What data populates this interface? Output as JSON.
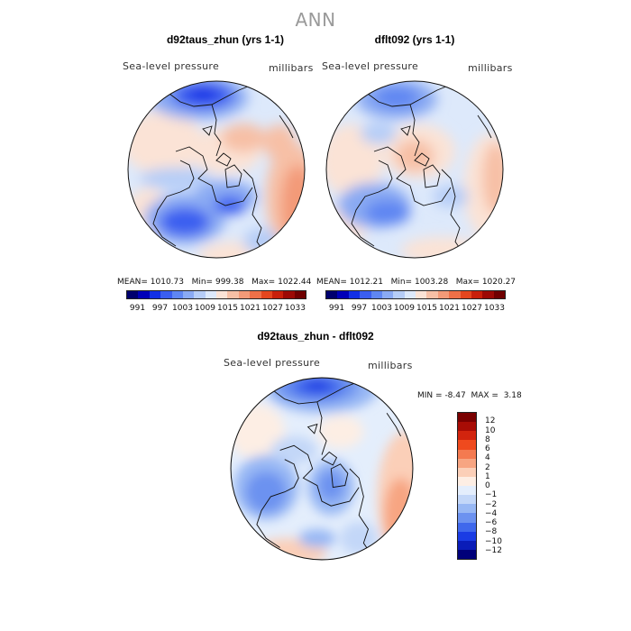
{
  "figure": {
    "suptitle": "ANN"
  },
  "panels": [
    {
      "title": "d92taus_zhun (yrs 1-1)",
      "field_label": "Sea-level pressure",
      "units_label": "millibars",
      "stats": {
        "mean_label": "MEAN=",
        "mean": "1010.73",
        "min_label": "Min=",
        "min": "999.38",
        "max_label": "Max=",
        "max": "1022.44"
      }
    },
    {
      "title": "dflt092 (yrs 1-1)",
      "field_label": "Sea-level pressure",
      "units_label": "millibars",
      "stats": {
        "mean_label": "MEAN=",
        "mean": "1012.21",
        "min_label": "Min=",
        "min": "1003.28",
        "max_label": "Max=",
        "max": "1020.27"
      }
    },
    {
      "title": "d92taus_zhun - dflt092",
      "field_label": "Sea-level pressure",
      "units_label": "millibars",
      "stats": {
        "min_label": "MIN =",
        "min": "-8.47",
        "max_label": "MAX =",
        "max": "3.18"
      }
    }
  ],
  "colorbar_abs": {
    "ticks": [
      "991",
      "997",
      "1003",
      "1009",
      "1015",
      "1021",
      "1027",
      "1033"
    ],
    "colors": [
      "#00006e",
      "#0000b8",
      "#1230e6",
      "#3a5ef0",
      "#5f86f2",
      "#8aaaf3",
      "#b6cdf7",
      "#dde9fb",
      "#fbe3d6",
      "#f7c0a6",
      "#f39a78",
      "#ee7048",
      "#e4461e",
      "#c8200a",
      "#9c0a05",
      "#700000"
    ]
  },
  "colorbar_diff": {
    "ticks": [
      "12",
      "10",
      "8",
      "6",
      "4",
      "2",
      "1",
      "0",
      "−1",
      "−2",
      "−4",
      "−6",
      "−8",
      "−10",
      "−12"
    ],
    "colors": [
      "#7a0000",
      "#a80c05",
      "#d2240e",
      "#ef4a1e",
      "#f47a50",
      "#f7a582",
      "#fbcfb8",
      "#fdeee4",
      "#e4eefc",
      "#c3d7f8",
      "#98b8f4",
      "#6c92f0",
      "#3f68ec",
      "#1a3ce4",
      "#0a1cb8",
      "#00007a"
    ]
  }
}
